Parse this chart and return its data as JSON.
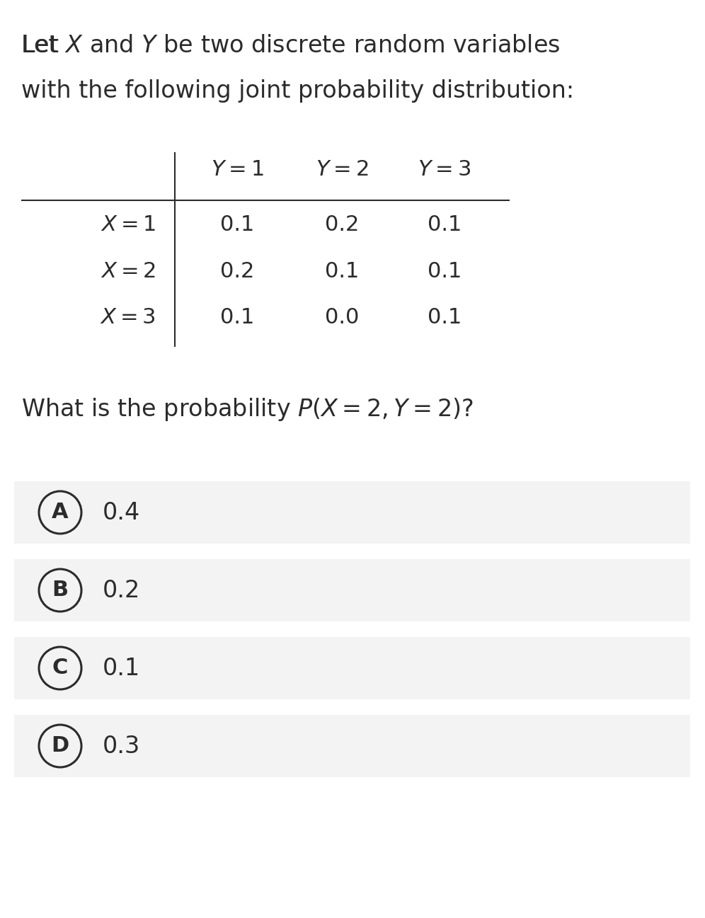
{
  "title_line1": "Let $\\itX$ and $\\itY$ be two discrete random variables",
  "title_line2": "with the following joint probability distribution:",
  "col_headers": [
    "$Y = 1$",
    "$Y = 2$",
    "$Y = 3$"
  ],
  "row_headers": [
    "$X = 1$",
    "$X = 2$",
    "$X = 3$"
  ],
  "table_values": [
    [
      "0.1",
      "0.2",
      "0.1"
    ],
    [
      "0.2",
      "0.1",
      "0.1"
    ],
    [
      "0.1",
      "0.0",
      "0.1"
    ]
  ],
  "question": "What is the probability $P(X = 2, Y = 2)$?",
  "choices": [
    {
      "label": "A",
      "value": "0.4"
    },
    {
      "label": "B",
      "value": "0.2"
    },
    {
      "label": "C",
      "value": "0.1"
    },
    {
      "label": "D",
      "value": "0.3"
    }
  ],
  "bg_color": "#ffffff",
  "option_bg_color": "#f3f3f3",
  "text_color": "#2b2b2b",
  "title_fontsize": 24,
  "table_fontsize": 22,
  "question_fontsize": 24,
  "option_fontsize": 24,
  "label_fontsize": 22
}
